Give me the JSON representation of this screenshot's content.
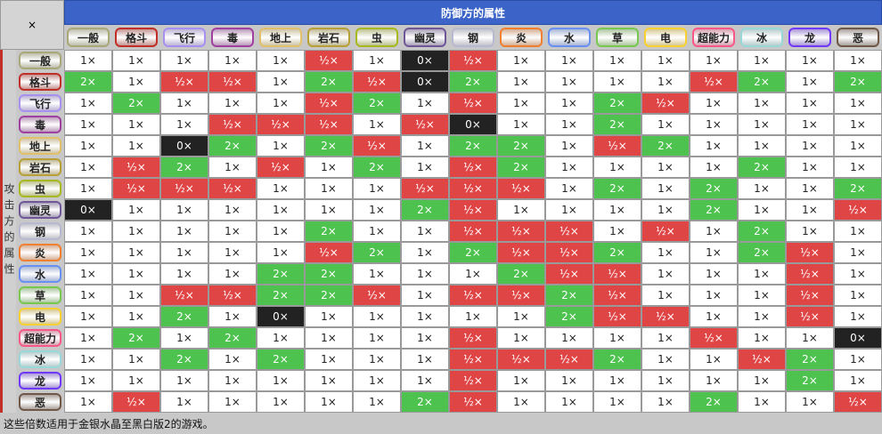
{
  "corner": "×",
  "defense_title": "防御方的属性",
  "attack_title": "攻击方的属性",
  "types": [
    {
      "name": "一般",
      "color": "#A8A878"
    },
    {
      "name": "格斗",
      "color": "#C03028"
    },
    {
      "name": "飞行",
      "color": "#A890F0"
    },
    {
      "name": "毒",
      "color": "#A040A0"
    },
    {
      "name": "地上",
      "color": "#E0C068"
    },
    {
      "name": "岩石",
      "color": "#B8A038"
    },
    {
      "name": "虫",
      "color": "#A8B820"
    },
    {
      "name": "幽灵",
      "color": "#705898"
    },
    {
      "name": "钢",
      "color": "#B8B8D0"
    },
    {
      "name": "炎",
      "color": "#F08030"
    },
    {
      "name": "水",
      "color": "#6890F0"
    },
    {
      "name": "草",
      "color": "#78C850"
    },
    {
      "name": "电",
      "color": "#F8D030"
    },
    {
      "name": "超能力",
      "color": "#F85888"
    },
    {
      "name": "冰",
      "color": "#98D8D8"
    },
    {
      "name": "龙",
      "color": "#7038F8"
    },
    {
      "name": "恶",
      "color": "#705848"
    }
  ],
  "rows": [
    [
      "1×",
      "1×",
      "1×",
      "1×",
      "1×",
      "½×",
      "1×",
      "0×",
      "½×",
      "1×",
      "1×",
      "1×",
      "1×",
      "1×",
      "1×",
      "1×",
      "1×"
    ],
    [
      "2×",
      "1×",
      "½×",
      "½×",
      "1×",
      "2×",
      "½×",
      "0×",
      "2×",
      "1×",
      "1×",
      "1×",
      "1×",
      "½×",
      "2×",
      "1×",
      "2×"
    ],
    [
      "1×",
      "2×",
      "1×",
      "1×",
      "1×",
      "½×",
      "2×",
      "1×",
      "½×",
      "1×",
      "1×",
      "2×",
      "½×",
      "1×",
      "1×",
      "1×",
      "1×"
    ],
    [
      "1×",
      "1×",
      "1×",
      "½×",
      "½×",
      "½×",
      "1×",
      "½×",
      "0×",
      "1×",
      "1×",
      "2×",
      "1×",
      "1×",
      "1×",
      "1×",
      "1×"
    ],
    [
      "1×",
      "1×",
      "0×",
      "2×",
      "1×",
      "2×",
      "½×",
      "1×",
      "2×",
      "2×",
      "1×",
      "½×",
      "2×",
      "1×",
      "1×",
      "1×",
      "1×"
    ],
    [
      "1×",
      "½×",
      "2×",
      "1×",
      "½×",
      "1×",
      "2×",
      "1×",
      "½×",
      "2×",
      "1×",
      "1×",
      "1×",
      "1×",
      "2×",
      "1×",
      "1×"
    ],
    [
      "1×",
      "½×",
      "½×",
      "½×",
      "1×",
      "1×",
      "1×",
      "½×",
      "½×",
      "½×",
      "1×",
      "2×",
      "1×",
      "2×",
      "1×",
      "1×",
      "2×"
    ],
    [
      "0×",
      "1×",
      "1×",
      "1×",
      "1×",
      "1×",
      "1×",
      "2×",
      "½×",
      "1×",
      "1×",
      "1×",
      "1×",
      "2×",
      "1×",
      "1×",
      "½×"
    ],
    [
      "1×",
      "1×",
      "1×",
      "1×",
      "1×",
      "2×",
      "1×",
      "1×",
      "½×",
      "½×",
      "½×",
      "1×",
      "½×",
      "1×",
      "2×",
      "1×",
      "1×"
    ],
    [
      "1×",
      "1×",
      "1×",
      "1×",
      "1×",
      "½×",
      "2×",
      "1×",
      "2×",
      "½×",
      "½×",
      "2×",
      "1×",
      "1×",
      "2×",
      "½×",
      "1×"
    ],
    [
      "1×",
      "1×",
      "1×",
      "1×",
      "2×",
      "2×",
      "1×",
      "1×",
      "1×",
      "2×",
      "½×",
      "½×",
      "1×",
      "1×",
      "1×",
      "½×",
      "1×"
    ],
    [
      "1×",
      "1×",
      "½×",
      "½×",
      "2×",
      "2×",
      "½×",
      "1×",
      "½×",
      "½×",
      "2×",
      "½×",
      "1×",
      "1×",
      "1×",
      "½×",
      "1×"
    ],
    [
      "1×",
      "1×",
      "2×",
      "1×",
      "0×",
      "1×",
      "1×",
      "1×",
      "1×",
      "1×",
      "2×",
      "½×",
      "½×",
      "1×",
      "1×",
      "½×",
      "1×"
    ],
    [
      "1×",
      "2×",
      "1×",
      "2×",
      "1×",
      "1×",
      "1×",
      "1×",
      "½×",
      "1×",
      "1×",
      "1×",
      "1×",
      "½×",
      "1×",
      "1×",
      "0×"
    ],
    [
      "1×",
      "1×",
      "2×",
      "1×",
      "2×",
      "1×",
      "1×",
      "1×",
      "½×",
      "½×",
      "½×",
      "2×",
      "1×",
      "1×",
      "½×",
      "2×",
      "1×"
    ],
    [
      "1×",
      "1×",
      "1×",
      "1×",
      "1×",
      "1×",
      "1×",
      "1×",
      "½×",
      "1×",
      "1×",
      "1×",
      "1×",
      "1×",
      "1×",
      "2×",
      "1×"
    ],
    [
      "1×",
      "½×",
      "1×",
      "1×",
      "1×",
      "1×",
      "1×",
      "2×",
      "½×",
      "1×",
      "1×",
      "1×",
      "1×",
      "2×",
      "1×",
      "1×",
      "½×"
    ]
  ],
  "footer": "这些倍数适用于金银水晶至黑白版2的游戏。"
}
